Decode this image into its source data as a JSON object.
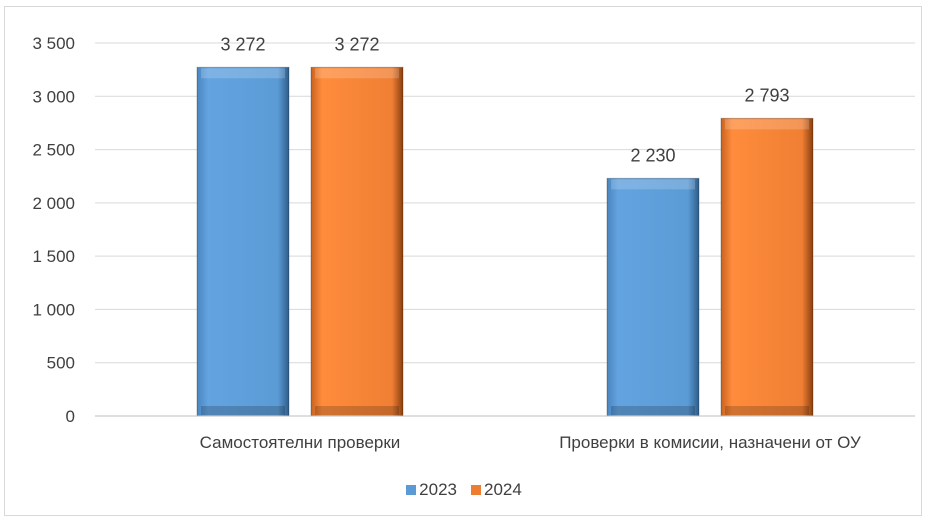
{
  "chart_data": {
    "type": "bar",
    "categories": [
      "Самостоятелни проверки",
      "Проверки в комисии, назначени от ОУ"
    ],
    "series": [
      {
        "name": "2023",
        "values": [
          3272,
          2230
        ],
        "labels": [
          "3 272",
          "2 230"
        ],
        "color": "#5b9bd5"
      },
      {
        "name": "2024",
        "values": [
          3272,
          2793
        ],
        "labels": [
          "3 272",
          "2 793"
        ],
        "color": "#ed7d31"
      }
    ],
    "ylim": [
      0,
      3500
    ],
    "yticks": [
      0,
      500,
      1000,
      1500,
      2000,
      2500,
      3000,
      3500
    ],
    "ytick_labels": [
      "0",
      "500",
      "1 000",
      "1 500",
      "2 000",
      "2 500",
      "3 000",
      "3 500"
    ],
    "grid": true,
    "legend_position": "bottom"
  }
}
